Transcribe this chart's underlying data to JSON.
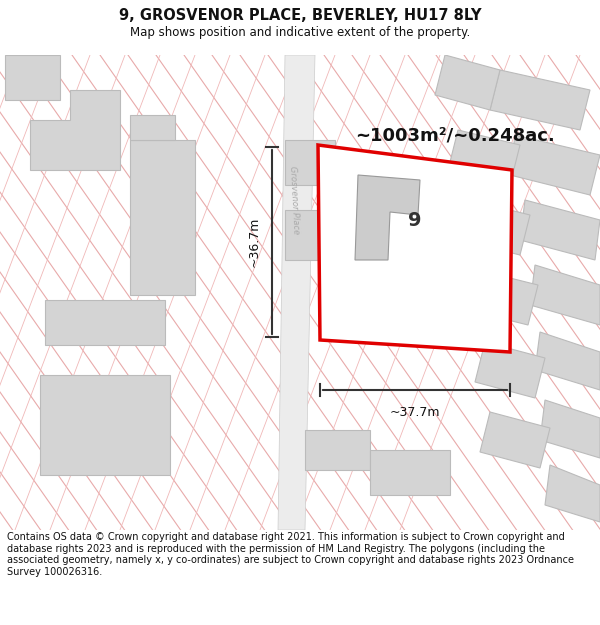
{
  "title": "9, GROSVENOR PLACE, BEVERLEY, HU17 8LY",
  "subtitle": "Map shows position and indicative extent of the property.",
  "footer": "Contains OS data © Crown copyright and database right 2021. This information is subject to Crown copyright and database rights 2023 and is reproduced with the permission of HM Land Registry. The polygons (including the associated geometry, namely x, y co-ordinates) are subject to Crown copyright and database rights 2023 Ordnance Survey 100026316.",
  "area_label": "~1003m²/~0.248ac.",
  "width_label": "~37.7m",
  "height_label": "~36.7m",
  "number_label": "9",
  "map_bg": "#f7f7f7",
  "building_fill": "#d4d4d4",
  "building_edge": "#bbbbbb",
  "road_fill": "#f0f0f0",
  "diag_line_color": "#e8aaaa",
  "highlight_color": "#e00000",
  "dim_color": "#333333",
  "title_fontsize": 10.5,
  "subtitle_fontsize": 8.5,
  "footer_fontsize": 7.0,
  "area_fontsize": 14,
  "num_fontsize": 14,
  "dim_fontsize": 9
}
